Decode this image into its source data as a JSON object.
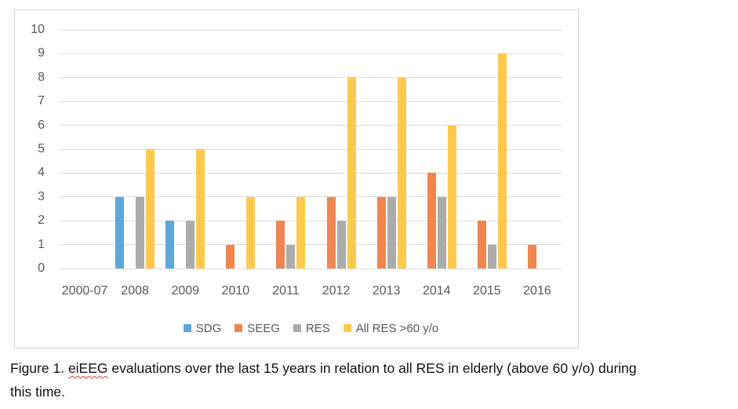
{
  "chart_data": {
    "type": "bar",
    "title": "",
    "xlabel": "",
    "ylabel": "",
    "categories": [
      "2000-07",
      "2008",
      "2009",
      "2010",
      "2011",
      "2012",
      "2013",
      "2014",
      "2015",
      "2016"
    ],
    "series": [
      {
        "name": "SDG",
        "color": "#5fa7da",
        "values": [
          0,
          3,
          2,
          0,
          0,
          0,
          0,
          0,
          0,
          0
        ]
      },
      {
        "name": "SEEG",
        "color": "#f0854f",
        "values": [
          0,
          0,
          0,
          1,
          2,
          3,
          3,
          4,
          2,
          1
        ]
      },
      {
        "name": "RES",
        "color": "#acacac",
        "values": [
          0,
          3,
          2,
          0,
          1,
          2,
          3,
          3,
          1,
          0
        ]
      },
      {
        "name": "All RES >60 y/o",
        "color": "#ffc94d",
        "values": [
          0,
          5,
          5,
          3,
          3,
          8,
          8,
          6,
          9,
          0
        ]
      }
    ],
    "ylim": [
      0,
      10
    ],
    "ytick_step": 1,
    "grid": true,
    "legend_position": "bottom"
  },
  "caption": {
    "line1_prefix": "Figure 1. ",
    "line1_misspelled_word": "eiEEG",
    "line1_rest": " evaluations over the last 15 years in relation to all RES in elderly (above 60 y/o) during",
    "line2": "this time."
  },
  "colors": {
    "gridline": "#dcdcdc",
    "frame_border": "#d6d6d6",
    "axis_text": "#595959",
    "caption_text": "#121212",
    "spellcheck_underline": "#e0321e"
  }
}
